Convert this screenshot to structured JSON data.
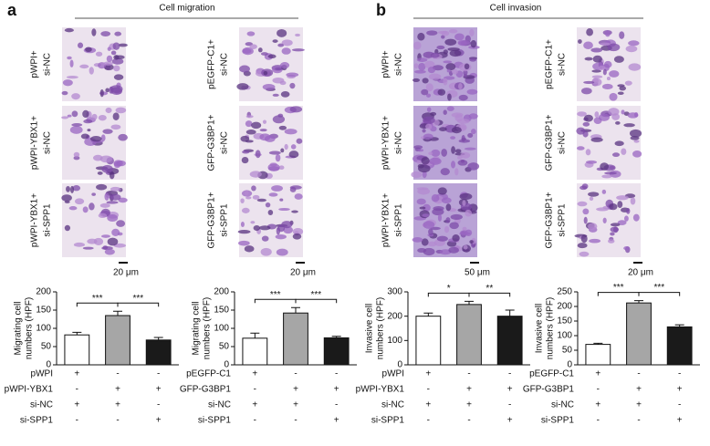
{
  "panels": [
    {
      "label": "a",
      "title": "Cell migration",
      "columns": [
        {
          "rows": [
            [
              "pWPI+",
              "si-NC"
            ],
            [
              "pWPI-YBX1+",
              "si-NC"
            ],
            [
              "pWPI-YBX1+",
              "si-SPP1"
            ]
          ],
          "scale": "20 μm"
        },
        {
          "rows": [
            [
              "pEGFP-C1+",
              "si-NC"
            ],
            [
              "GFP-G3BP1+",
              "si-NC"
            ],
            [
              "GFP-G3BP1+",
              "si-SPP1"
            ]
          ],
          "scale": "20 μm"
        }
      ]
    },
    {
      "label": "b",
      "title": "Cell invasion",
      "columns": [
        {
          "rows": [
            [
              "pWPI+",
              "si-NC"
            ],
            [
              "pWPI-YBX1+",
              "si-NC"
            ],
            [
              "pWPI-YBX1+",
              "si-SPP1"
            ]
          ],
          "scale": "50 μm"
        },
        {
          "rows": [
            [
              "pEGFP-C1+",
              "si-NC"
            ],
            [
              "GFP-G3BP1+",
              "si-NC"
            ],
            [
              "GFP-G3BP1+",
              "si-SPP1"
            ]
          ],
          "scale": "20 μm"
        }
      ]
    }
  ],
  "chart_data": [
    {
      "type": "bar",
      "ylabel": [
        "Migrating cell",
        "numbers (HPF)"
      ],
      "categories": [
        null,
        null,
        null
      ],
      "values": [
        82,
        135,
        68
      ],
      "errors": [
        7,
        12,
        7
      ],
      "colors": [
        "#ffffff",
        "#a6a6a6",
        "#1a1a1a"
      ],
      "ylim": [
        0,
        200
      ],
      "yticks": [
        0,
        50,
        100,
        150,
        200
      ],
      "significance": [
        "***",
        "***"
      ],
      "conditions": [
        {
          "label": "pWPI",
          "marks": [
            "+",
            "-",
            "-"
          ]
        },
        {
          "label": "pWPI-YBX1",
          "marks": [
            "-",
            "+",
            "+"
          ]
        },
        {
          "label": "si-NC",
          "marks": [
            "+",
            "+",
            "-"
          ]
        },
        {
          "label": "si-SPP1",
          "marks": [
            "-",
            "-",
            "+"
          ]
        }
      ]
    },
    {
      "type": "bar",
      "ylabel": [
        "Migrating cell",
        "numbers (HPF)"
      ],
      "categories": [
        null,
        null,
        null
      ],
      "values": [
        73,
        142,
        74
      ],
      "errors": [
        14,
        15,
        4
      ],
      "colors": [
        "#ffffff",
        "#a6a6a6",
        "#1a1a1a"
      ],
      "ylim": [
        0,
        200
      ],
      "yticks": [
        0,
        50,
        100,
        150,
        200
      ],
      "significance": [
        "***",
        "***"
      ],
      "conditions": [
        {
          "label": "pEGFP-C1",
          "marks": [
            "+",
            "-",
            "-"
          ]
        },
        {
          "label": "GFP-G3BP1",
          "marks": [
            "-",
            "+",
            "+"
          ]
        },
        {
          "label": "si-NC",
          "marks": [
            "+",
            "+",
            "-"
          ]
        },
        {
          "label": "si-SPP1",
          "marks": [
            "-",
            "-",
            "+"
          ]
        }
      ]
    },
    {
      "type": "bar",
      "ylabel": [
        "Invasive cell",
        "numbers (HPF)"
      ],
      "categories": [
        null,
        null,
        null
      ],
      "values": [
        200,
        248,
        200
      ],
      "errors": [
        13,
        13,
        25
      ],
      "colors": [
        "#ffffff",
        "#a6a6a6",
        "#1a1a1a"
      ],
      "ylim": [
        0,
        300
      ],
      "yticks": [
        0,
        100,
        200,
        300
      ],
      "significance": [
        "*",
        "**"
      ],
      "conditions": [
        {
          "label": "pWPI",
          "marks": [
            "+",
            "-",
            "-"
          ]
        },
        {
          "label": "pWPI-YBX1",
          "marks": [
            "-",
            "+",
            "+"
          ]
        },
        {
          "label": "si-NC",
          "marks": [
            "+",
            "+",
            "-"
          ]
        },
        {
          "label": "si-SPP1",
          "marks": [
            "-",
            "-",
            "+"
          ]
        }
      ]
    },
    {
      "type": "bar",
      "ylabel": [
        "Invasive cell",
        "numbers (HPF)"
      ],
      "categories": [
        null,
        null,
        null
      ],
      "values": [
        70,
        212,
        130
      ],
      "errors": [
        4,
        8,
        7
      ],
      "colors": [
        "#ffffff",
        "#a6a6a6",
        "#1a1a1a"
      ],
      "ylim": [
        0,
        250
      ],
      "yticks": [
        0,
        50,
        100,
        150,
        200,
        250
      ],
      "significance": [
        "***",
        "***"
      ],
      "conditions": [
        {
          "label": "pEGFP-C1",
          "marks": [
            "+",
            "-",
            "-"
          ]
        },
        {
          "label": "GFP-G3BP1",
          "marks": [
            "-",
            "+",
            "+"
          ]
        },
        {
          "label": "si-NC",
          "marks": [
            "+",
            "+",
            "-"
          ]
        },
        {
          "label": "si-SPP1",
          "marks": [
            "-",
            "-",
            "+"
          ]
        }
      ]
    }
  ]
}
